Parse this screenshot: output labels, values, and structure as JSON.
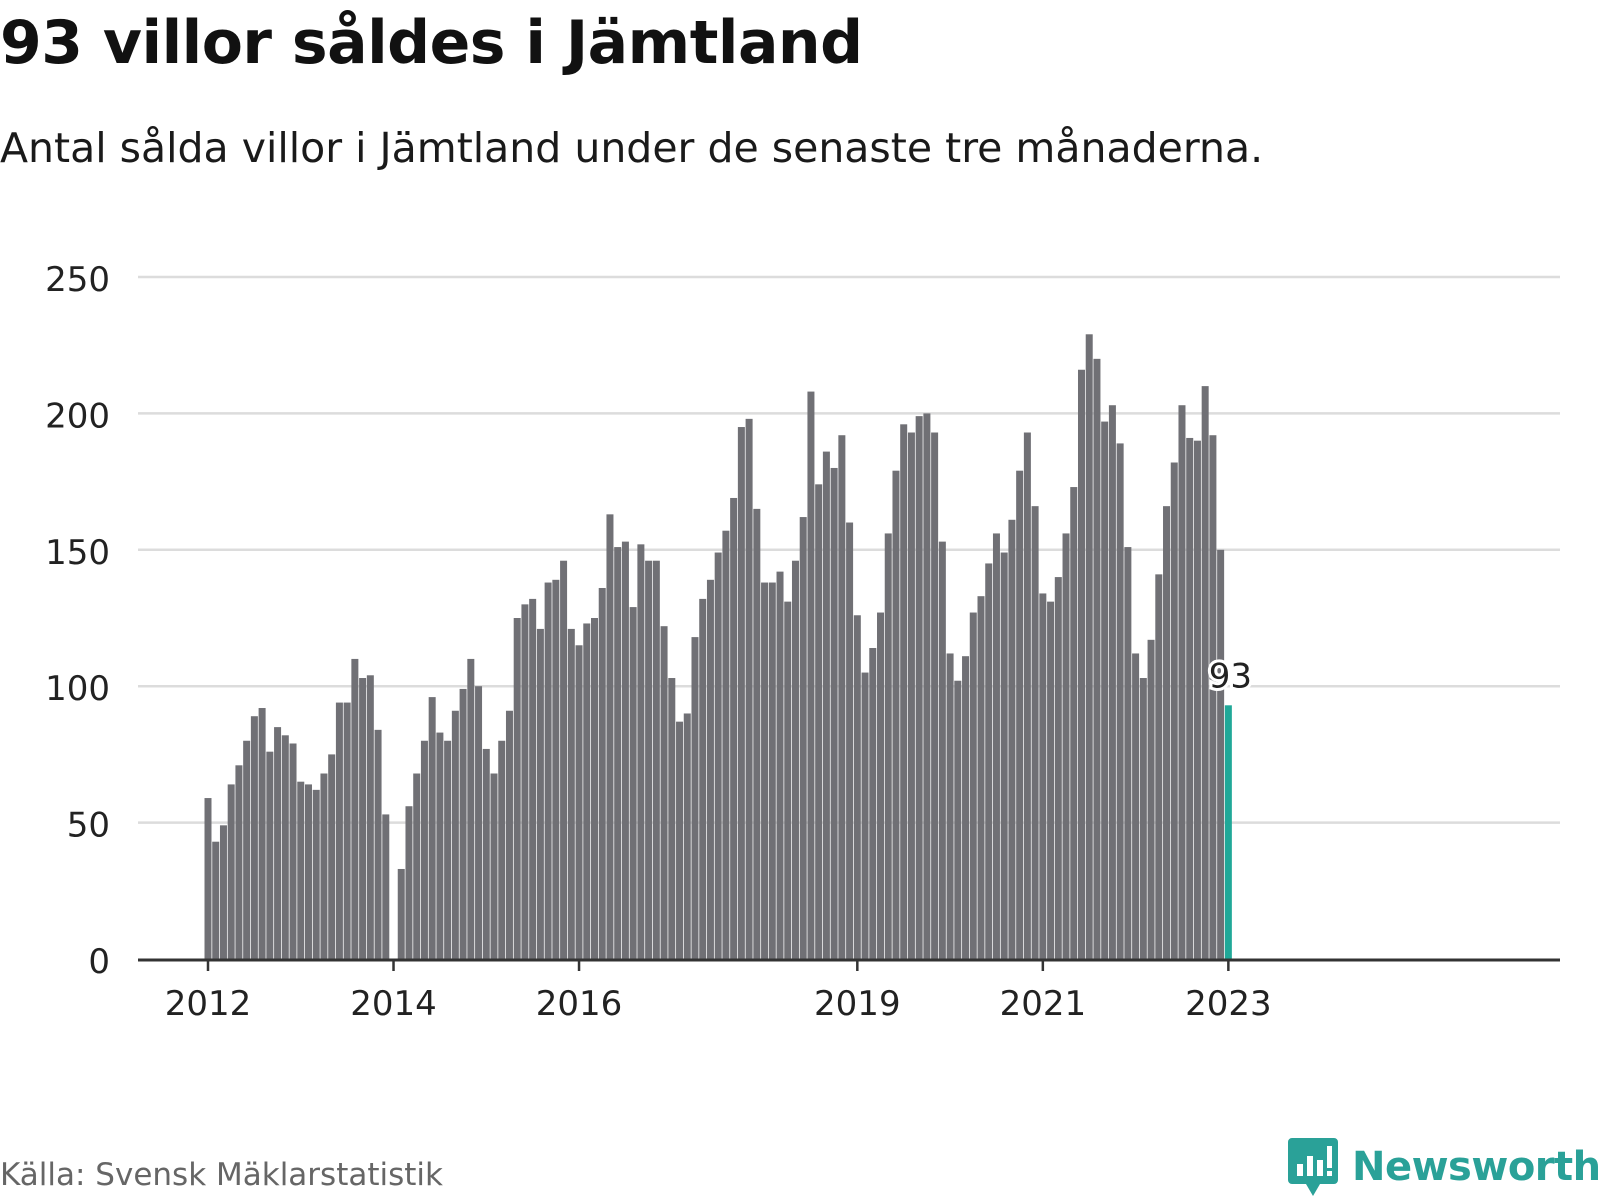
{
  "header": {
    "title": "93 villor såldes i Jämtland",
    "subtitle": "Antal sålda villor i Jämtland under de senaste tre månaderna."
  },
  "footer": {
    "source": "Källa: Svensk Mäklarstatistik",
    "brand": "Newsworthy"
  },
  "colors": {
    "bar": "#707075",
    "highlight": "#20a898",
    "grid": "#dcdcdc",
    "brand": "#2aa198"
  },
  "icons": {
    "logo": "bar-chart-speech-bubble-icon"
  },
  "chart_data": {
    "type": "bar",
    "title": "93 villor såldes i Jämtland",
    "subtitle": "Antal sålda villor i Jämtland under de senaste tre månaderna.",
    "ylim": [
      0,
      250
    ],
    "yticks": [
      0,
      50,
      100,
      150,
      200,
      250
    ],
    "grid": true,
    "x_tick_labels": [
      {
        "label": "2012",
        "index": 0
      },
      {
        "label": "2014",
        "index": 24
      },
      {
        "label": "2016",
        "index": 48
      },
      {
        "label": "2019",
        "index": 84
      },
      {
        "label": "2021",
        "index": 108
      },
      {
        "label": "2023",
        "index": 132
      }
    ],
    "values": [
      59,
      43,
      49,
      64,
      71,
      80,
      89,
      92,
      76,
      85,
      82,
      79,
      65,
      64,
      62,
      68,
      75,
      94,
      94,
      110,
      103,
      104,
      84,
      53,
      0,
      33,
      56,
      68,
      80,
      96,
      83,
      80,
      91,
      99,
      110,
      100,
      77,
      68,
      80,
      91,
      125,
      130,
      132,
      121,
      138,
      139,
      146,
      121,
      115,
      123,
      125,
      136,
      163,
      151,
      153,
      129,
      152,
      146,
      146,
      122,
      103,
      87,
      90,
      118,
      132,
      139,
      149,
      157,
      169,
      195,
      198,
      165,
      138,
      138,
      142,
      131,
      146,
      162,
      208,
      174,
      186,
      180,
      192,
      160,
      126,
      105,
      114,
      127,
      156,
      179,
      196,
      193,
      199,
      200,
      193,
      153,
      112,
      102,
      111,
      127,
      133,
      145,
      156,
      149,
      161,
      179,
      193,
      166,
      134,
      131,
      140,
      156,
      173,
      216,
      229,
      220,
      197,
      203,
      189,
      151,
      112,
      103,
      117,
      141,
      166,
      182,
      203,
      191,
      190,
      210,
      192,
      150,
      93
    ],
    "highlight_index": 132,
    "highlight_label": "93"
  }
}
